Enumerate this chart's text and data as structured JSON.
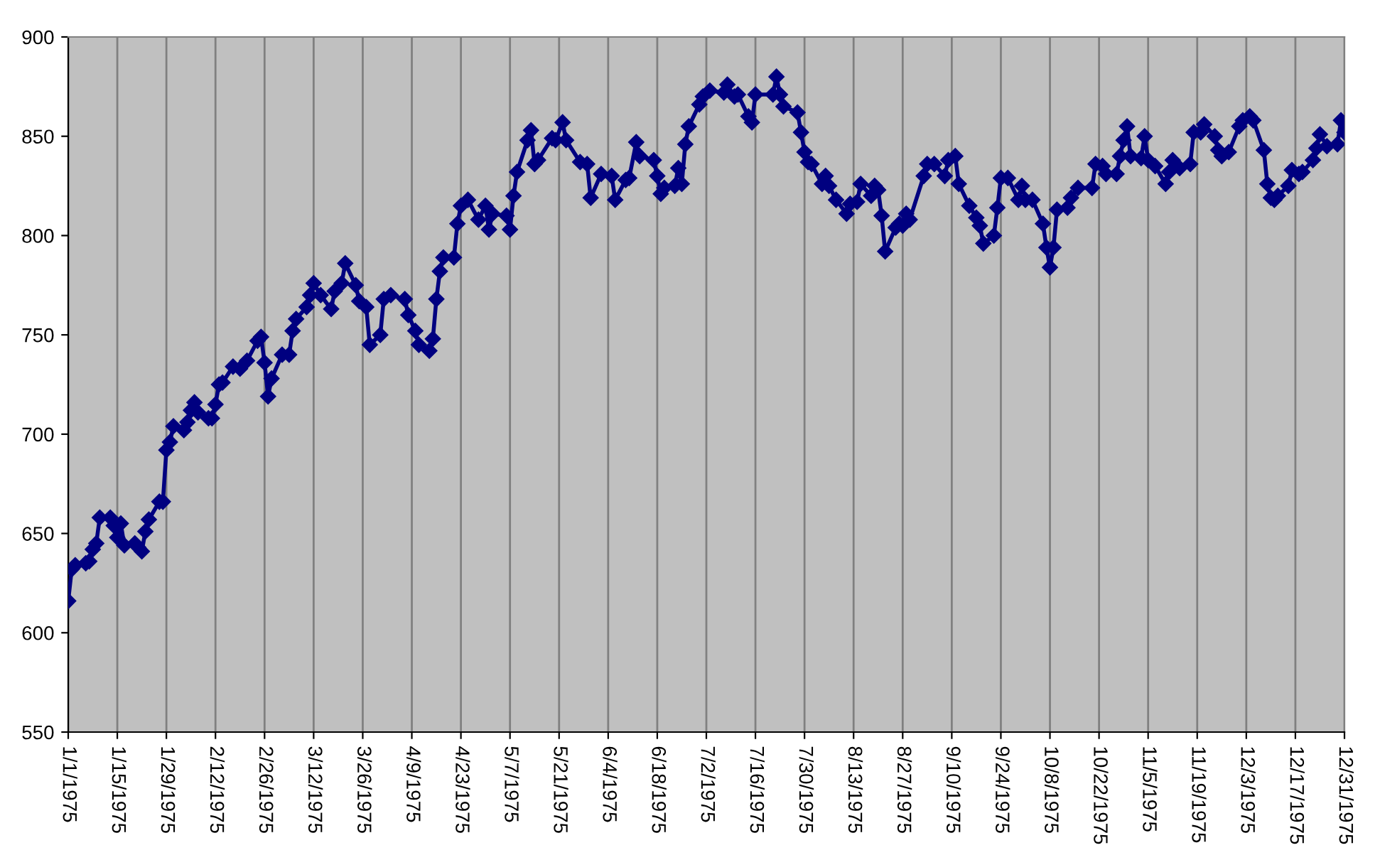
{
  "chart_data": {
    "type": "line",
    "marker": "diamond",
    "line_style": "solid",
    "grid": "x",
    "legend": false,
    "x": [
      "1975-01-01",
      "1975-01-02",
      "1975-01-03",
      "1975-01-06",
      "1975-01-07",
      "1975-01-08",
      "1975-01-09",
      "1975-01-10",
      "1975-01-13",
      "1975-01-14",
      "1975-01-15",
      "1975-01-16",
      "1975-01-17",
      "1975-01-20",
      "1975-01-21",
      "1975-01-22",
      "1975-01-23",
      "1975-01-24",
      "1975-01-27",
      "1975-01-28",
      "1975-01-29",
      "1975-01-30",
      "1975-01-31",
      "1975-02-03",
      "1975-02-04",
      "1975-02-05",
      "1975-02-06",
      "1975-02-07",
      "1975-02-10",
      "1975-02-11",
      "1975-02-12",
      "1975-02-13",
      "1975-02-14",
      "1975-02-17",
      "1975-02-19",
      "1975-02-21",
      "1975-02-24",
      "1975-02-25",
      "1975-02-26",
      "1975-02-27",
      "1975-02-28",
      "1975-03-03",
      "1975-03-05",
      "1975-03-06",
      "1975-03-07",
      "1975-03-10",
      "1975-03-11",
      "1975-03-12",
      "1975-03-14",
      "1975-03-17",
      "1975-03-18",
      "1975-03-20",
      "1975-03-21",
      "1975-03-24",
      "1975-03-25",
      "1975-03-27",
      "1975-03-28",
      "1975-03-31",
      "1975-04-01",
      "1975-04-03",
      "1975-04-07",
      "1975-04-08",
      "1975-04-10",
      "1975-04-11",
      "1975-04-14",
      "1975-04-15",
      "1975-04-16",
      "1975-04-17",
      "1975-04-18",
      "1975-04-21",
      "1975-04-22",
      "1975-04-23",
      "1975-04-25",
      "1975-04-28",
      "1975-04-30",
      "1975-05-01",
      "1975-05-02",
      "1975-05-06",
      "1975-05-07",
      "1975-05-08",
      "1975-05-09",
      "1975-05-12",
      "1975-05-13",
      "1975-05-14",
      "1975-05-15",
      "1975-05-19",
      "1975-05-20",
      "1975-05-22",
      "1975-05-23",
      "1975-05-27",
      "1975-05-29",
      "1975-05-30",
      "1975-06-02",
      "1975-06-05",
      "1975-06-06",
      "1975-06-09",
      "1975-06-10",
      "1975-06-12",
      "1975-06-13",
      "1975-06-17",
      "1975-06-18",
      "1975-06-19",
      "1975-06-20",
      "1975-06-23",
      "1975-06-24",
      "1975-06-25",
      "1975-06-26",
      "1975-06-27",
      "1975-06-30",
      "1975-07-01",
      "1975-07-03",
      "1975-07-07",
      "1975-07-08",
      "1975-07-10",
      "1975-07-11",
      "1975-07-14",
      "1975-07-15",
      "1975-07-16",
      "1975-07-21",
      "1975-07-22",
      "1975-07-23",
      "1975-07-24",
      "1975-07-28",
      "1975-07-29",
      "1975-07-30",
      "1975-07-31",
      "1975-08-01",
      "1975-08-04",
      "1975-08-05",
      "1975-08-06",
      "1975-08-08",
      "1975-08-11",
      "1975-08-12",
      "1975-08-14",
      "1975-08-15",
      "1975-08-18",
      "1975-08-19",
      "1975-08-20",
      "1975-08-21",
      "1975-08-22",
      "1975-08-25",
      "1975-08-26",
      "1975-08-27",
      "1975-08-28",
      "1975-08-29",
      "1975-09-02",
      "1975-09-03",
      "1975-09-05",
      "1975-09-08",
      "1975-09-09",
      "1975-09-11",
      "1975-09-12",
      "1975-09-15",
      "1975-09-17",
      "1975-09-18",
      "1975-09-19",
      "1975-09-22",
      "1975-09-23",
      "1975-09-24",
      "1975-09-26",
      "1975-09-29",
      "1975-09-30",
      "1975-10-01",
      "1975-10-03",
      "1975-10-06",
      "1975-10-07",
      "1975-10-08",
      "1975-10-09",
      "1975-10-10",
      "1975-10-13",
      "1975-10-14",
      "1975-10-16",
      "1975-10-20",
      "1975-10-21",
      "1975-10-23",
      "1975-10-24",
      "1975-10-27",
      "1975-10-28",
      "1975-10-29",
      "1975-10-30",
      "1975-10-31",
      "1975-11-03",
      "1975-11-04",
      "1975-11-05",
      "1975-11-07",
      "1975-11-10",
      "1975-11-11",
      "1975-11-12",
      "1975-11-14",
      "1975-11-17",
      "1975-11-18",
      "1975-11-20",
      "1975-11-21",
      "1975-11-24",
      "1975-11-25",
      "1975-11-26",
      "1975-11-28",
      "1975-12-01",
      "1975-12-02",
      "1975-12-04",
      "1975-12-05",
      "1975-12-08",
      "1975-12-09",
      "1975-12-10",
      "1975-12-11",
      "1975-12-12",
      "1975-12-15",
      "1975-12-16",
      "1975-12-18",
      "1975-12-19",
      "1975-12-22",
      "1975-12-23",
      "1975-12-24",
      "1975-12-26",
      "1975-12-29",
      "1975-12-30",
      "1975-12-31"
    ],
    "series": [
      {
        "color": "#000080",
        "values": [
          616,
          632,
          634,
          635,
          636,
          642,
          645,
          658,
          658,
          654,
          648,
          655,
          644,
          645,
          643,
          641,
          651,
          657,
          666,
          666,
          692,
          696,
          704,
          702,
          706,
          712,
          716,
          711,
          708,
          708,
          715,
          725,
          726,
          734,
          733,
          737,
          747,
          749,
          736,
          719,
          728,
          740,
          740,
          752,
          758,
          764,
          770,
          776,
          770,
          763,
          772,
          776,
          786,
          775,
          767,
          764,
          745,
          750,
          768,
          770,
          768,
          760,
          752,
          745,
          742,
          748,
          768,
          782,
          789,
          789,
          806,
          815,
          818,
          808,
          815,
          803,
          811,
          810,
          803,
          820,
          832,
          848,
          853,
          836,
          838,
          849,
          848,
          857,
          848,
          837,
          836,
          819,
          831,
          830,
          818,
          828,
          829,
          847,
          840,
          838,
          830,
          821,
          824,
          825,
          834,
          826,
          846,
          855,
          866,
          870,
          873,
          872,
          876,
          870,
          871,
          860,
          857,
          871,
          871,
          880,
          871,
          865,
          862,
          852,
          842,
          837,
          836,
          826,
          830,
          825,
          818,
          811,
          816,
          817,
          826,
          820,
          825,
          823,
          810,
          792,
          804,
          806,
          805,
          811,
          808,
          830,
          836,
          836,
          830,
          838,
          840,
          826,
          815,
          809,
          805,
          796,
          800,
          814,
          829,
          829,
          818,
          825,
          818,
          818,
          806,
          794,
          784,
          794,
          813,
          814,
          819,
          824,
          824,
          836,
          835,
          831,
          831,
          840,
          848,
          855,
          840,
          839,
          850,
          838,
          835,
          826,
          832,
          838,
          834,
          836,
          852,
          852,
          856,
          850,
          843,
          840,
          842,
          855,
          858,
          860,
          858,
          843,
          826,
          819,
          818,
          820,
          825,
          833,
          831,
          832,
          838,
          844,
          851,
          845,
          846,
          858,
          852
        ]
      }
    ],
    "xlim": [
      "1975-01-01",
      "1975-12-31"
    ],
    "xticks": [
      {
        "value": "1975-01-01",
        "label": "1/1/1975"
      },
      {
        "value": "1975-01-15",
        "label": "1/15/1975"
      },
      {
        "value": "1975-01-29",
        "label": "1/29/1975"
      },
      {
        "value": "1975-02-12",
        "label": "2/12/1975"
      },
      {
        "value": "1975-02-26",
        "label": "2/26/1975"
      },
      {
        "value": "1975-03-12",
        "label": "3/12/1975"
      },
      {
        "value": "1975-03-26",
        "label": "3/26/1975"
      },
      {
        "value": "1975-04-09",
        "label": "4/9/1975"
      },
      {
        "value": "1975-04-23",
        "label": "4/23/1975"
      },
      {
        "value": "1975-05-07",
        "label": "5/7/1975"
      },
      {
        "value": "1975-05-21",
        "label": "5/21/1975"
      },
      {
        "value": "1975-06-04",
        "label": "6/4/1975"
      },
      {
        "value": "1975-06-18",
        "label": "6/18/1975"
      },
      {
        "value": "1975-07-02",
        "label": "7/2/1975"
      },
      {
        "value": "1975-07-16",
        "label": "7/16/1975"
      },
      {
        "value": "1975-07-30",
        "label": "7/30/1975"
      },
      {
        "value": "1975-08-13",
        "label": "8/13/1975"
      },
      {
        "value": "1975-08-27",
        "label": "8/27/1975"
      },
      {
        "value": "1975-09-10",
        "label": "9/10/1975"
      },
      {
        "value": "1975-09-24",
        "label": "9/24/1975"
      },
      {
        "value": "1975-10-08",
        "label": "10/8/1975"
      },
      {
        "value": "1975-10-22",
        "label": "10/22/1975"
      },
      {
        "value": "1975-11-05",
        "label": "11/5/1975"
      },
      {
        "value": "1975-11-19",
        "label": "11/19/1975"
      },
      {
        "value": "1975-12-03",
        "label": "12/3/1975"
      },
      {
        "value": "1975-12-17",
        "label": "12/17/1975"
      },
      {
        "value": "1975-12-31",
        "label": "12/31/1975"
      }
    ],
    "ylim": [
      550,
      900
    ],
    "yticks": [
      550,
      600,
      650,
      700,
      750,
      800,
      850,
      900
    ]
  }
}
